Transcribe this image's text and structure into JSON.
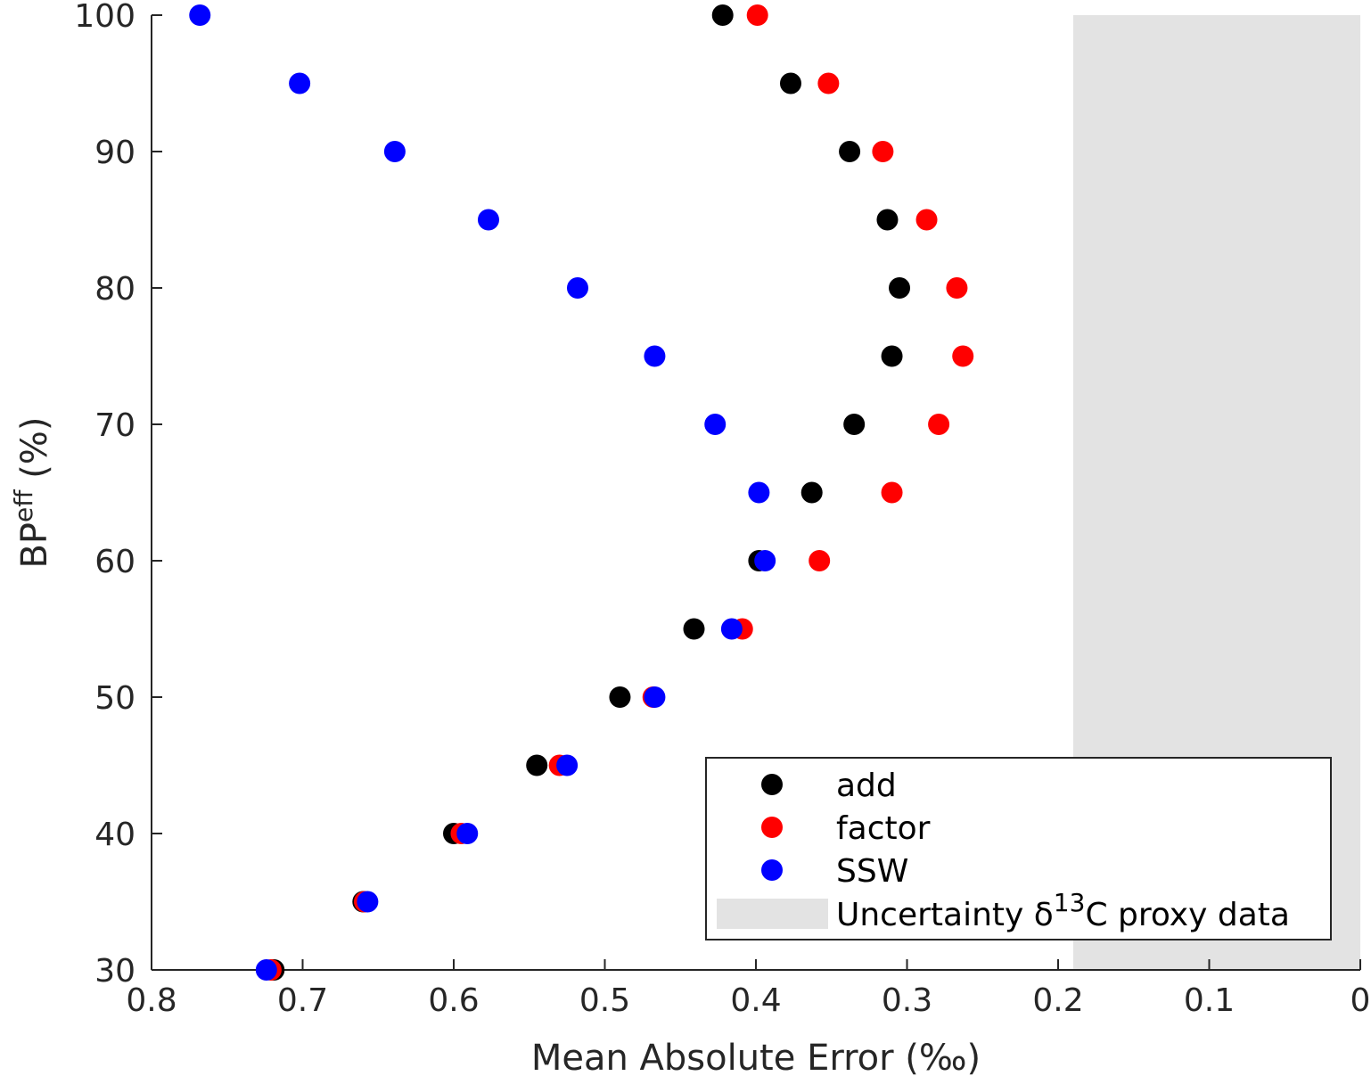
{
  "chart_data": {
    "type": "scatter",
    "xlabel": "Mean Absolute Error (‰)",
    "ylabel_main": "BP",
    "ylabel_sup": "eff",
    "ylabel_tail": " (%)",
    "x_reversed": true,
    "xlim": [
      0,
      0.8
    ],
    "ylim": [
      30,
      100
    ],
    "x_ticks": [
      0.8,
      0.7,
      0.6,
      0.5,
      0.4,
      0.3,
      0.2,
      0.1,
      0
    ],
    "x_tick_labels": [
      "0.8",
      "0.7",
      "0.6",
      "0.5",
      "0.4",
      "0.3",
      "0.2",
      "0.1",
      "0"
    ],
    "y_ticks": [
      30,
      40,
      50,
      60,
      70,
      80,
      90,
      100
    ],
    "y_tick_labels": [
      "30",
      "40",
      "50",
      "60",
      "70",
      "80",
      "90",
      "100"
    ],
    "grid": false,
    "legend_position": "bottom-right",
    "uncertainty_band": {
      "x_from": 0,
      "x_to": 0.19,
      "color": "#e3e3e3",
      "label_main": "Uncertainty δ",
      "label_sup": "13",
      "label_tail": "C proxy data"
    },
    "y": [
      100,
      95,
      90,
      85,
      80,
      75,
      70,
      65,
      60,
      55,
      50,
      45,
      40,
      35,
      30
    ],
    "series": [
      {
        "name": "add",
        "color": "#000000",
        "x": [
          0.422,
          0.377,
          0.338,
          0.313,
          0.305,
          0.31,
          0.335,
          0.363,
          0.398,
          0.441,
          0.49,
          0.545,
          0.6,
          0.66,
          0.719
        ]
      },
      {
        "name": "factor",
        "color": "#ff0000",
        "x": [
          0.399,
          0.352,
          0.316,
          0.287,
          0.267,
          0.263,
          0.279,
          0.31,
          0.358,
          0.409,
          0.468,
          0.53,
          0.595,
          0.659,
          0.721
        ]
      },
      {
        "name": "SSW",
        "color": "#0000ff",
        "x": [
          0.768,
          0.702,
          0.639,
          0.577,
          0.518,
          0.467,
          0.427,
          0.398,
          0.394,
          0.416,
          0.467,
          0.525,
          0.591,
          0.657,
          0.724
        ]
      }
    ]
  }
}
